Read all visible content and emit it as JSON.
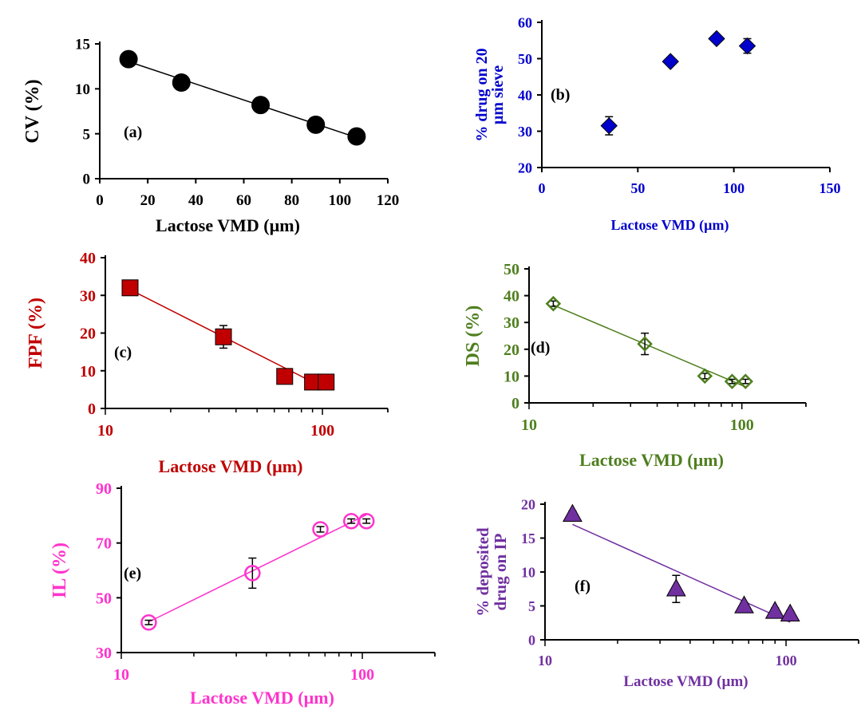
{
  "chart_data": [
    {
      "type": "scatter",
      "panel_label": "(a)",
      "xlabel": "Lactose VMD (µm)",
      "ylabel": "CV (%)",
      "x_scale": "linear",
      "xlim": [
        0,
        120
      ],
      "ylim": [
        0,
        15
      ],
      "x_ticks": [
        "0",
        "20",
        "40",
        "60",
        "80",
        "100",
        "120"
      ],
      "y_ticks": [
        "0",
        "5",
        "10",
        "15"
      ],
      "color": "#000000",
      "marker": "filled-circle",
      "trendline": true,
      "series": [
        {
          "x": [
            12,
            34,
            67,
            90,
            107
          ],
          "y": [
            13.3,
            10.7,
            8.2,
            6.0,
            4.7
          ],
          "err": [
            0,
            0,
            0,
            0,
            0
          ]
        }
      ]
    },
    {
      "type": "scatter",
      "panel_label": "(b)",
      "xlabel": "Lactose VMD (µm)",
      "ylabel_lines": [
        "% drug on  20",
        "µm sieve"
      ],
      "x_scale": "linear",
      "xlim": [
        0,
        150
      ],
      "ylim": [
        20,
        60
      ],
      "x_ticks": [
        "0",
        "50",
        "100",
        "150"
      ],
      "y_ticks": [
        "20",
        "30",
        "40",
        "50",
        "60"
      ],
      "color": "#0000cc",
      "marker": "filled-diamond",
      "trendline": false,
      "series": [
        {
          "x": [
            35,
            67,
            91,
            107
          ],
          "y": [
            31.5,
            49.2,
            55.5,
            53.5
          ],
          "err": [
            2.5,
            0.8,
            1.0,
            2.0
          ]
        }
      ]
    },
    {
      "type": "scatter",
      "panel_label": "(c)",
      "xlabel": "Lactose VMD (µm)",
      "ylabel": "FPF (%)",
      "x_scale": "log",
      "xlim": [
        10,
        200
      ],
      "ylim": [
        0,
        40
      ],
      "x_ticks": [
        "10",
        "100"
      ],
      "y_ticks": [
        "0",
        "10",
        "20",
        "30",
        "40"
      ],
      "color": "#c00000",
      "marker": "filled-square",
      "trendline": true,
      "series": [
        {
          "x": [
            13,
            35,
            67,
            90,
            104
          ],
          "y": [
            32,
            19,
            8.5,
            7,
            7
          ],
          "err": [
            0.8,
            3.0,
            0.8,
            0.5,
            0.5
          ]
        }
      ]
    },
    {
      "type": "scatter",
      "panel_label": "(d)",
      "xlabel": "Lactose VMD (µm)",
      "ylabel": "DS (%)",
      "x_scale": "log",
      "xlim": [
        10,
        200
      ],
      "ylim": [
        0,
        50
      ],
      "x_ticks": [
        "10",
        "100"
      ],
      "y_ticks": [
        "0",
        "10",
        "20",
        "30",
        "40",
        "50"
      ],
      "color": "#4f7f1f",
      "marker": "open-diamond",
      "trendline": true,
      "series": [
        {
          "x": [
            13,
            35,
            67,
            90,
            104
          ],
          "y": [
            37,
            22,
            10,
            8,
            8
          ],
          "err": [
            1.0,
            4.0,
            1.0,
            0.8,
            0.8
          ]
        }
      ]
    },
    {
      "type": "scatter",
      "panel_label": "(e)",
      "xlabel": "Lactose VMD (µm)",
      "ylabel": "IL (%)",
      "x_scale": "log",
      "xlim": [
        10,
        200
      ],
      "ylim": [
        30,
        90
      ],
      "x_ticks": [
        "10",
        "100"
      ],
      "y_ticks": [
        "30",
        "50",
        "70",
        "90"
      ],
      "color": "#ff33cc",
      "marker": "open-circle",
      "trendline": true,
      "series": [
        {
          "x": [
            13,
            35,
            67,
            90,
            104
          ],
          "y": [
            41,
            59,
            75,
            78,
            78
          ],
          "err": [
            0.8,
            5.5,
            1.0,
            0.8,
            0.8
          ]
        }
      ]
    },
    {
      "type": "scatter",
      "panel_label": "(f)",
      "xlabel": "Lactose VMD (µm)",
      "ylabel_lines": [
        "% deposited",
        "drug on IP"
      ],
      "x_scale": "log",
      "xlim": [
        10,
        200
      ],
      "ylim": [
        0,
        20
      ],
      "x_ticks": [
        "10",
        "100"
      ],
      "y_ticks": [
        "0",
        "5",
        "10",
        "15",
        "20"
      ],
      "color": "#7030a0",
      "marker": "filled-triangle",
      "trendline": true,
      "series": [
        {
          "x": [
            13,
            35,
            67,
            90,
            104
          ],
          "y": [
            18.5,
            7.5,
            5,
            4.2,
            3.8
          ],
          "err": [
            0.5,
            2.0,
            0.5,
            0.5,
            0.5
          ]
        }
      ]
    }
  ]
}
